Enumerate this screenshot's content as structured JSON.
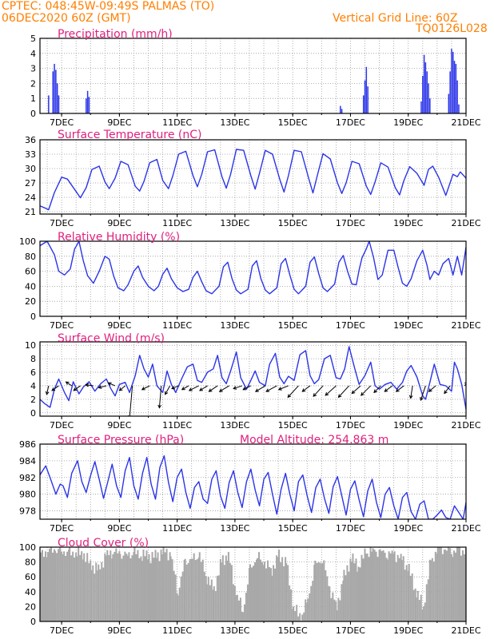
{
  "header": {
    "line1_left": "CPTEC:  048:45W-09:49S  PALMAS (TO)",
    "line2_left": "06DEC2020 60Z (GMT)",
    "line1_right": "Vertical Grid Line: 60Z",
    "line2_right": "TQ0126L028"
  },
  "colors": {
    "series": "#2b34e8",
    "cloud": "#a8a8a8",
    "title": "#e0207e",
    "header": "#ff7f00"
  },
  "chart_data": [
    {
      "type": "bar",
      "title": "Precipitation (mm/h)",
      "ylim": [
        0,
        5
      ],
      "yticks": [
        "0",
        "1",
        "2",
        "3",
        "4",
        "5"
      ],
      "xticks": [
        "7DEC",
        "9DEC",
        "11DEC",
        "13DEC",
        "15DEC",
        "17DEC",
        "19DEC",
        "21DEC"
      ],
      "x": [
        6.55,
        6.7,
        6.75,
        6.8,
        6.85,
        6.9,
        7.85,
        7.9,
        7.95,
        16.65,
        16.7,
        17.45,
        17.5,
        17.55,
        17.6,
        19.45,
        19.5,
        19.55,
        19.6,
        19.65,
        19.7,
        19.75,
        20.4,
        20.45,
        20.5,
        20.55,
        20.6,
        20.65,
        20.7,
        20.75
      ],
      "values": [
        1.2,
        2.8,
        3.3,
        2.9,
        2.0,
        1.2,
        1.0,
        1.5,
        1.1,
        0.5,
        0.3,
        1.2,
        2.2,
        3.1,
        1.8,
        0.8,
        2.5,
        3.9,
        3.4,
        2.8,
        2.0,
        1.0,
        1.3,
        2.8,
        4.3,
        4.1,
        3.5,
        3.3,
        2.2,
        0.6
      ]
    },
    {
      "type": "line",
      "title": "Surface Temperature (nC)",
      "ylim": [
        20.5,
        36
      ],
      "yticks": [
        "21",
        "24",
        "27",
        "30",
        "33",
        "36"
      ],
      "xticks": [
        "7DEC",
        "9DEC",
        "11DEC",
        "13DEC",
        "15DEC",
        "17DEC",
        "19DEC",
        "21DEC"
      ],
      "x": [
        6.25,
        6.45,
        6.55,
        6.75,
        7.0,
        7.2,
        7.5,
        7.65,
        7.85,
        8.05,
        8.3,
        8.5,
        8.65,
        8.85,
        9.05,
        9.3,
        9.55,
        9.7,
        9.85,
        10.05,
        10.3,
        10.5,
        10.7,
        10.85,
        11.05,
        11.3,
        11.55,
        11.7,
        11.85,
        12.05,
        12.3,
        12.55,
        12.7,
        12.85,
        13.05,
        13.3,
        13.55,
        13.7,
        13.85,
        14.05,
        14.3,
        14.55,
        14.7,
        14.85,
        15.05,
        15.3,
        15.55,
        15.7,
        15.85,
        16.05,
        16.3,
        16.55,
        16.7,
        16.85,
        17.05,
        17.3,
        17.55,
        17.7,
        17.85,
        18.05,
        18.3,
        18.55,
        18.7,
        18.85,
        19.05,
        19.3,
        19.55,
        19.7,
        19.85,
        20.05,
        20.3,
        20.55,
        20.7,
        20.8,
        21.0
      ],
      "values": [
        22.2,
        21.7,
        21.4,
        25.0,
        28.2,
        27.8,
        25.2,
        23.9,
        26.0,
        29.8,
        30.5,
        27.2,
        25.8,
        28.0,
        31.5,
        30.8,
        26.3,
        25.3,
        27.3,
        31.2,
        31.9,
        27.5,
        25.8,
        28.5,
        33.0,
        33.6,
        28.5,
        26.2,
        28.8,
        33.5,
        33.9,
        28.3,
        25.9,
        28.8,
        34.0,
        33.8,
        28.5,
        25.7,
        29.0,
        33.8,
        33.0,
        27.8,
        25.1,
        28.5,
        33.8,
        33.5,
        28.0,
        24.9,
        28.5,
        33.1,
        32.0,
        27.0,
        24.8,
        27.0,
        31.5,
        31.0,
        26.3,
        24.6,
        27.2,
        31.2,
        30.3,
        26.0,
        24.5,
        27.5,
        30.4,
        29.0,
        26.5,
        29.8,
        30.5,
        28.2,
        24.4,
        28.8,
        28.3,
        29.3,
        28.0
      ]
    },
    {
      "type": "line",
      "title": "Relative Humidity (%)",
      "ylim": [
        0,
        100
      ],
      "yticks": [
        "0",
        "20",
        "40",
        "60",
        "80",
        "100"
      ],
      "xticks": [
        "7DEC",
        "9DEC",
        "11DEC",
        "13DEC",
        "15DEC",
        "17DEC",
        "19DEC",
        "21DEC"
      ],
      "x": [
        6.25,
        6.5,
        6.75,
        6.9,
        7.1,
        7.3,
        7.45,
        7.5,
        7.6,
        7.75,
        7.9,
        8.1,
        8.3,
        8.5,
        8.65,
        8.8,
        8.95,
        9.15,
        9.3,
        9.5,
        9.65,
        9.8,
        10.0,
        10.2,
        10.35,
        10.5,
        10.65,
        10.8,
        11.0,
        11.2,
        11.4,
        11.55,
        11.7,
        11.85,
        12.0,
        12.2,
        12.45,
        12.6,
        12.75,
        12.9,
        13.05,
        13.2,
        13.45,
        13.6,
        13.75,
        13.9,
        14.05,
        14.2,
        14.45,
        14.6,
        14.75,
        14.9,
        15.05,
        15.2,
        15.45,
        15.6,
        15.75,
        15.9,
        16.05,
        16.2,
        16.45,
        16.6,
        16.75,
        16.9,
        17.05,
        17.2,
        17.3,
        17.4,
        17.55,
        17.65,
        17.8,
        17.95,
        18.1,
        18.3,
        18.5,
        18.65,
        18.8,
        18.95,
        19.1,
        19.3,
        19.5,
        19.65,
        19.75,
        19.9,
        20.05,
        20.2,
        20.4,
        20.55,
        20.7,
        20.85,
        21.0
      ],
      "values": [
        94,
        100,
        82,
        60,
        55,
        63,
        90,
        93,
        100,
        74,
        54,
        44,
        60,
        80,
        76,
        54,
        38,
        34,
        42,
        60,
        67,
        52,
        40,
        34,
        40,
        56,
        64,
        50,
        38,
        33,
        36,
        52,
        60,
        46,
        34,
        30,
        40,
        66,
        72,
        50,
        35,
        30,
        36,
        67,
        74,
        50,
        35,
        30,
        38,
        70,
        77,
        55,
        36,
        30,
        40,
        72,
        79,
        57,
        38,
        33,
        43,
        72,
        81,
        60,
        43,
        42,
        62,
        78,
        90,
        100,
        78,
        49,
        55,
        88,
        88,
        65,
        44,
        40,
        50,
        74,
        88,
        68,
        49,
        60,
        55,
        70,
        77,
        55,
        80,
        55,
        92
      ]
    },
    {
      "type": "line",
      "title": "Surface Wind (m/s)",
      "ylim": [
        -0.5,
        10.5
      ],
      "yticks": [
        "0",
        "2",
        "4",
        "6",
        "8",
        "10"
      ],
      "xticks": [
        "7DEC",
        "9DEC",
        "11DEC",
        "13DEC",
        "15DEC",
        "17DEC",
        "19DEC",
        "21DEC"
      ],
      "x": [
        6.25,
        6.4,
        6.6,
        6.75,
        6.9,
        7.1,
        7.25,
        7.4,
        7.5,
        7.6,
        7.75,
        7.95,
        8.15,
        8.35,
        8.55,
        8.7,
        8.85,
        9.0,
        9.2,
        9.35,
        9.55,
        9.7,
        9.85,
        10.0,
        10.15,
        10.3,
        10.5,
        10.65,
        10.8,
        10.95,
        11.15,
        11.35,
        11.55,
        11.7,
        11.85,
        12.05,
        12.25,
        12.4,
        12.55,
        12.7,
        12.85,
        13.05,
        13.2,
        13.4,
        13.55,
        13.7,
        13.85,
        14.05,
        14.2,
        14.4,
        14.55,
        14.7,
        14.85,
        15.05,
        15.25,
        15.45,
        15.6,
        15.75,
        15.9,
        16.1,
        16.3,
        16.5,
        16.65,
        16.8,
        16.95,
        17.15,
        17.3,
        17.5,
        17.7,
        17.85,
        18.0,
        18.2,
        18.4,
        18.6,
        18.8,
        18.95,
        19.1,
        19.3,
        19.5,
        19.6,
        19.75,
        19.9,
        20.1,
        20.3,
        20.5,
        20.6,
        20.7,
        20.85,
        21.0
      ],
      "values": [
        2.0,
        1.4,
        0.8,
        3.5,
        5.0,
        3.0,
        1.8,
        4.6,
        3.7,
        2.8,
        3.8,
        4.6,
        3.2,
        4.3,
        5.0,
        3.6,
        2.5,
        4.2,
        4.5,
        3.0,
        5.5,
        8.5,
        6.5,
        5.3,
        7.2,
        4.0,
        3.0,
        6.2,
        4.2,
        3.0,
        5.0,
        6.8,
        7.2,
        4.8,
        4.5,
        6.0,
        6.5,
        8.5,
        5.2,
        4.3,
        6.2,
        9.0,
        5.2,
        3.5,
        4.8,
        6.2,
        4.5,
        4.0,
        7.2,
        8.8,
        5.3,
        4.3,
        5.4,
        4.8,
        8.6,
        9.2,
        5.5,
        4.3,
        4.9,
        8.0,
        8.5,
        5.2,
        5.0,
        6.5,
        9.8,
        6.5,
        4.2,
        5.5,
        7.5,
        4.0,
        3.5,
        4.2,
        4.5,
        3.5,
        4.5,
        6.2,
        7.0,
        5.3,
        2.5,
        2.0,
        4.5,
        7.2,
        4.2,
        4.0,
        3.2,
        7.5,
        6.5,
        4.2,
        0.5
      ],
      "wind_vectors": [
        {
          "x": 6.55,
          "u": -0.2,
          "v": -0.9
        },
        {
          "x": 6.9,
          "u": -0.7,
          "v": -0.5
        },
        {
          "x": 7.35,
          "u": -0.6,
          "v": 0.4
        },
        {
          "x": 7.65,
          "u": -0.7,
          "v": -0.5
        },
        {
          "x": 8.1,
          "u": -0.8,
          "v": 0.1
        },
        {
          "x": 8.55,
          "u": -0.8,
          "v": -0.2
        },
        {
          "x": 8.85,
          "u": -0.7,
          "v": 0.3
        },
        {
          "x": 9.2,
          "u": -0.6,
          "v": -0.5
        },
        {
          "x": 9.45,
          "u": -0.3,
          "v": -3.4
        },
        {
          "x": 10.05,
          "u": -0.8,
          "v": -0.4
        },
        {
          "x": 10.45,
          "u": -0.2,
          "v": -2.3
        },
        {
          "x": 10.75,
          "u": -0.5,
          "v": -0.9
        },
        {
          "x": 11.05,
          "u": -0.7,
          "v": -0.3
        },
        {
          "x": 11.4,
          "u": -0.7,
          "v": -0.4
        },
        {
          "x": 11.75,
          "u": -1.0,
          "v": -0.5
        },
        {
          "x": 12.05,
          "u": -0.8,
          "v": -0.5
        },
        {
          "x": 12.4,
          "u": -0.9,
          "v": -0.6
        },
        {
          "x": 12.8,
          "u": -1.0,
          "v": -0.6
        },
        {
          "x": 13.25,
          "u": -0.9,
          "v": -0.3
        },
        {
          "x": 13.55,
          "u": -0.8,
          "v": -0.4
        },
        {
          "x": 14.05,
          "u": -1.0,
          "v": -0.6
        },
        {
          "x": 14.45,
          "u": -1.1,
          "v": -0.6
        },
        {
          "x": 14.85,
          "u": -1.0,
          "v": -0.4
        },
        {
          "x": 15.2,
          "u": -1.1,
          "v": -1.2
        },
        {
          "x": 15.6,
          "u": -0.8,
          "v": -0.6
        },
        {
          "x": 16.05,
          "u": -1.0,
          "v": -1.1
        },
        {
          "x": 16.5,
          "u": -1.1,
          "v": -1.0
        },
        {
          "x": 16.95,
          "u": -1.1,
          "v": -1.2
        },
        {
          "x": 17.35,
          "u": -0.9,
          "v": -0.8
        },
        {
          "x": 17.7,
          "u": -1.0,
          "v": -1.0
        },
        {
          "x": 18.05,
          "u": -0.7,
          "v": -0.7
        },
        {
          "x": 18.45,
          "u": -0.8,
          "v": -0.6
        },
        {
          "x": 18.85,
          "u": -0.8,
          "v": -0.6
        },
        {
          "x": 19.15,
          "u": -0.2,
          "v": -1.3
        },
        {
          "x": 19.6,
          "u": -0.5,
          "v": -1.5
        },
        {
          "x": 19.95,
          "u": -0.7,
          "v": -0.6
        },
        {
          "x": 20.45,
          "u": -0.6,
          "v": -0.8
        },
        {
          "x": 20.95,
          "u": 0.3,
          "v": 0.4
        }
      ]
    },
    {
      "type": "line",
      "title": "Surface Pressure (hPa)",
      "annotation": "Model Altitude: 254.863 m",
      "ylim": [
        977,
        986
      ],
      "yticks": [
        "978",
        "980",
        "982",
        "984",
        "986"
      ],
      "xticks": [
        "7DEC",
        "9DEC",
        "11DEC",
        "13DEC",
        "15DEC",
        "17DEC",
        "19DEC",
        "21DEC"
      ],
      "x": [
        6.25,
        6.45,
        6.6,
        6.8,
        6.95,
        7.05,
        7.2,
        7.35,
        7.55,
        7.7,
        7.85,
        8.0,
        8.15,
        8.3,
        8.45,
        8.6,
        8.75,
        8.9,
        9.05,
        9.2,
        9.35,
        9.5,
        9.65,
        9.8,
        9.95,
        10.1,
        10.25,
        10.4,
        10.55,
        10.7,
        10.85,
        11.0,
        11.15,
        11.3,
        11.45,
        11.6,
        11.75,
        11.9,
        12.05,
        12.2,
        12.35,
        12.5,
        12.65,
        12.8,
        12.95,
        13.1,
        13.25,
        13.4,
        13.55,
        13.7,
        13.85,
        14.0,
        14.15,
        14.3,
        14.45,
        14.6,
        14.75,
        14.9,
        15.05,
        15.2,
        15.35,
        15.5,
        15.65,
        15.8,
        15.95,
        16.1,
        16.25,
        16.4,
        16.55,
        16.7,
        16.85,
        17.0,
        17.15,
        17.3,
        17.45,
        17.6,
        17.75,
        17.9,
        18.05,
        18.2,
        18.35,
        18.5,
        18.65,
        18.8,
        18.95,
        19.1,
        19.25,
        19.4,
        19.55,
        19.7,
        19.85,
        20.0,
        20.15,
        20.3,
        20.45,
        20.6,
        20.75,
        20.9,
        21.0
      ],
      "values": [
        982.3,
        983.4,
        982.0,
        980.0,
        981.2,
        981.0,
        979.6,
        982.5,
        984.0,
        981.5,
        980.2,
        982.2,
        983.9,
        981.8,
        979.5,
        981.5,
        983.6,
        981.0,
        979.6,
        982.8,
        984.4,
        981.0,
        979.4,
        982.5,
        984.4,
        981.2,
        979.4,
        983.2,
        984.6,
        981.4,
        979.1,
        982.0,
        983.0,
        980.2,
        978.3,
        980.8,
        981.5,
        979.4,
        978.9,
        981.8,
        982.8,
        979.8,
        978.3,
        981.4,
        982.8,
        980.2,
        978.4,
        981.5,
        983.0,
        980.5,
        978.6,
        981.8,
        982.6,
        980.0,
        977.6,
        980.6,
        982.5,
        980.0,
        978.0,
        981.5,
        982.3,
        979.8,
        977.8,
        980.8,
        981.8,
        979.5,
        977.7,
        980.9,
        982.1,
        979.8,
        977.5,
        980.6,
        981.6,
        979.3,
        977.3,
        980.4,
        981.8,
        979.0,
        977.2,
        980.0,
        980.8,
        978.6,
        977.0,
        979.6,
        980.2,
        977.9,
        977.0,
        978.8,
        979.2,
        977.0,
        977.0,
        977.5,
        978.1,
        977.2,
        977.0,
        978.6,
        977.8,
        977.0,
        979.0
      ]
    },
    {
      "type": "area",
      "title": "Cloud Cover (%)",
      "ylim": [
        0,
        100
      ],
      "yticks": [
        "0",
        "20",
        "40",
        "60",
        "80",
        "100"
      ],
      "xticks": [
        "7DEC",
        "9DEC",
        "11DEC",
        "13DEC",
        "15DEC",
        "17DEC",
        "19DEC",
        "21DEC"
      ],
      "x": [
        6.25,
        6.5,
        6.75,
        7.0,
        7.25,
        7.5,
        7.75,
        8.0,
        8.25,
        8.5,
        8.75,
        9.0,
        9.25,
        9.5,
        9.75,
        10.0,
        10.25,
        10.5,
        10.75,
        11.0,
        11.25,
        11.5,
        11.75,
        12.0,
        12.25,
        12.5,
        12.75,
        13.0,
        13.25,
        13.5,
        13.75,
        14.0,
        14.25,
        14.5,
        14.75,
        15.0,
        15.25,
        15.5,
        15.75,
        16.0,
        16.25,
        16.5,
        16.75,
        17.0,
        17.25,
        17.5,
        17.75,
        18.0,
        18.25,
        18.5,
        18.75,
        19.0,
        19.25,
        19.5,
        19.75,
        20.0,
        20.25,
        20.5,
        20.75,
        21.0
      ],
      "values": [
        90,
        95,
        96,
        95,
        92,
        93,
        90,
        75,
        70,
        88,
        95,
        90,
        90,
        92,
        90,
        88,
        88,
        95,
        90,
        40,
        80,
        85,
        88,
        60,
        42,
        80,
        90,
        40,
        15,
        70,
        88,
        78,
        70,
        88,
        80,
        20,
        5,
        30,
        75,
        85,
        45,
        20,
        60,
        85,
        75,
        92,
        96,
        93,
        92,
        90,
        85,
        70,
        40,
        20,
        80,
        98,
        96,
        95,
        96,
        95
      ]
    }
  ]
}
